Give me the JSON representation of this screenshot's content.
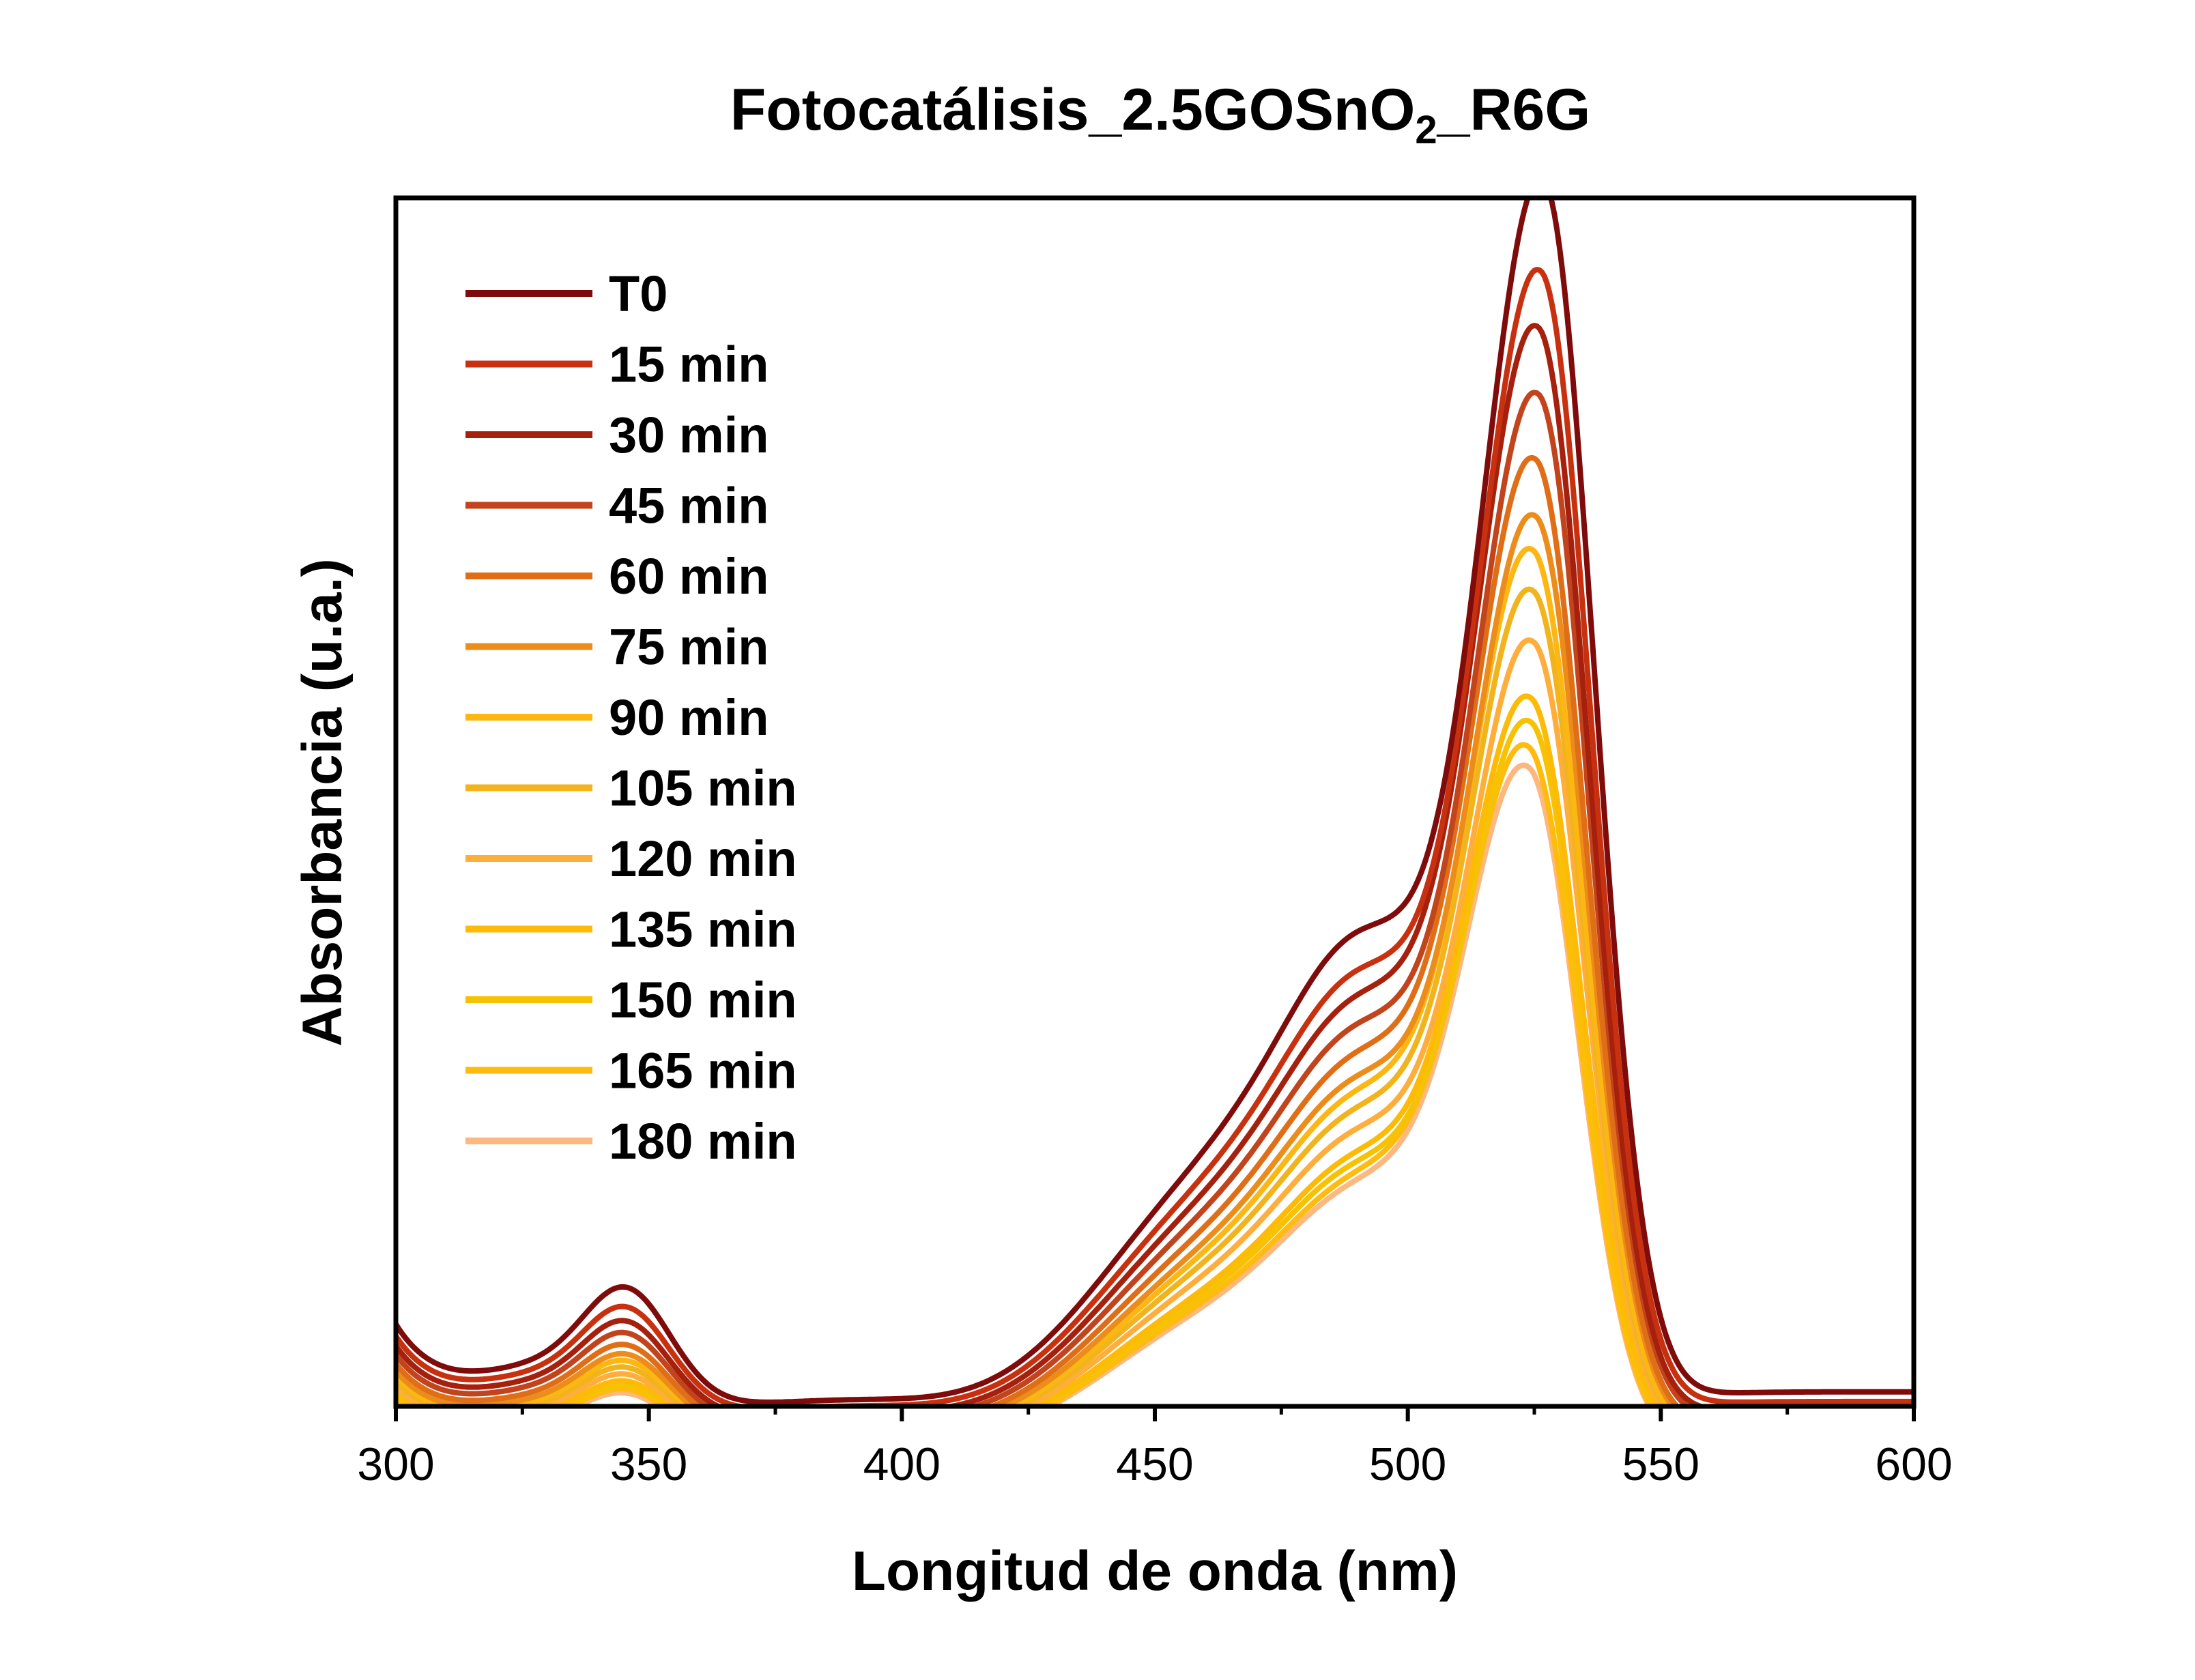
{
  "chart_data": {
    "type": "line",
    "title": {
      "main": "Fotocatálisis_2.5GOSnO",
      "subscript": "2",
      "suffix": "_R6G"
    },
    "xlabel": "Longitud de onda (nm)",
    "ylabel": "Absorbancia (u.a.)",
    "xlim": [
      300,
      600
    ],
    "ylim": [
      0,
      1.0
    ],
    "x_ticks": [
      300,
      350,
      400,
      450,
      500,
      550,
      600
    ],
    "y_ticks_shown": false,
    "grid": false,
    "legend_position": "top-left",
    "series": [
      {
        "name": "T0",
        "color": "#7f0b0b",
        "peak": 0.975,
        "peak_x": 527,
        "uv": 0.082,
        "base": 0.0,
        "tail": 0.012
      },
      {
        "name": "15 min",
        "color": "#c8310f",
        "peak": 0.905,
        "peak_x": 526.5,
        "uv": 0.072,
        "base": -0.005,
        "tail": 0.009
      },
      {
        "name": "30 min",
        "color": "#a6200e",
        "peak": 0.863,
        "peak_x": 526,
        "uv": 0.066,
        "base": -0.01,
        "tail": 0.007
      },
      {
        "name": "45 min",
        "color": "#c2441c",
        "peak": 0.814,
        "peak_x": 526,
        "uv": 0.061,
        "base": -0.014,
        "tail": 0.005
      },
      {
        "name": "60 min",
        "color": "#df6e17",
        "peak": 0.764,
        "peak_x": 525.5,
        "uv": 0.056,
        "base": -0.018,
        "tail": 0.003
      },
      {
        "name": "75 min",
        "color": "#ec8c1b",
        "peak": 0.722,
        "peak_x": 525.5,
        "uv": 0.052,
        "base": -0.021,
        "tail": 0.002
      },
      {
        "name": "90 min",
        "color": "#fdb713",
        "peak": 0.695,
        "peak_x": 525,
        "uv": 0.049,
        "base": -0.023,
        "tail": 0.001
      },
      {
        "name": "105 min",
        "color": "#f1b41d",
        "peak": 0.665,
        "peak_x": 525,
        "uv": 0.046,
        "base": -0.025,
        "tail": 0.0
      },
      {
        "name": "120 min",
        "color": "#ffad3b",
        "peak": 0.627,
        "peak_x": 525,
        "uv": 0.043,
        "base": -0.027,
        "tail": -0.001
      },
      {
        "name": "135 min",
        "color": "#fdbb08",
        "peak": 0.583,
        "peak_x": 524.5,
        "uv": 0.04,
        "base": -0.029,
        "tail": -0.002
      },
      {
        "name": "150 min",
        "color": "#f6c204",
        "peak": 0.565,
        "peak_x": 524.5,
        "uv": 0.038,
        "base": -0.03,
        "tail": -0.003
      },
      {
        "name": "165 min",
        "color": "#ffbc0e",
        "peak": 0.545,
        "peak_x": 524,
        "uv": 0.036,
        "base": -0.031,
        "tail": -0.003
      },
      {
        "name": "180 min",
        "color": "#fcb87f",
        "peak": 0.53,
        "peak_x": 524,
        "uv": 0.034,
        "base": -0.032,
        "tail": -0.004
      }
    ]
  }
}
